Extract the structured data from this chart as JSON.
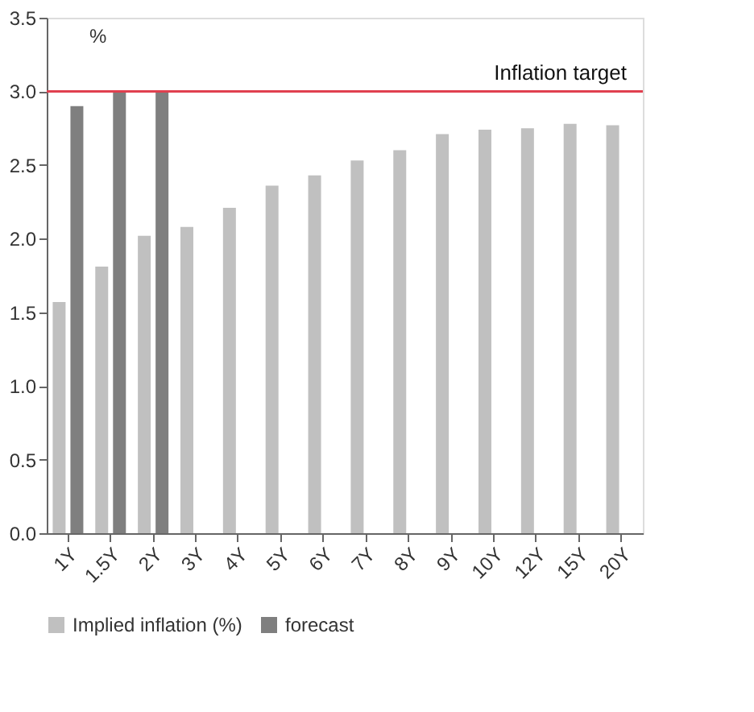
{
  "chart_data": {
    "type": "bar",
    "ylabel": "%",
    "categories": [
      "1Y",
      "1.5Y",
      "2Y",
      "3Y",
      "4Y",
      "5Y",
      "6Y",
      "7Y",
      "8Y",
      "9Y",
      "10Y",
      "12Y",
      "15Y",
      "20Y"
    ],
    "series": [
      {
        "name": "Implied inflation (%)",
        "color": "#c0c0c0",
        "values": [
          1.57,
          1.81,
          2.02,
          2.08,
          2.21,
          2.36,
          2.43,
          2.53,
          2.6,
          2.71,
          2.74,
          2.75,
          2.78,
          2.77
        ]
      },
      {
        "name": "forecast",
        "color": "#7f7f7f",
        "values": [
          2.9,
          3.0,
          3.0,
          null,
          null,
          null,
          null,
          null,
          null,
          null,
          null,
          null,
          null,
          null
        ]
      }
    ],
    "ylim": [
      0,
      3.5
    ],
    "yticks": [
      {
        "value": 0,
        "label": "0.0"
      },
      0.5,
      {
        "value": 1,
        "label": "1.0"
      },
      1.5,
      {
        "value": 2,
        "label": "2.0"
      },
      2.5,
      {
        "value": 3,
        "label": "3.0"
      },
      3.5
    ],
    "ref_lines": [
      {
        "axis": "y",
        "value": 3.0,
        "label": "Inflation target",
        "color": "#e0404f"
      }
    ],
    "grid": false,
    "legend": "bottom"
  }
}
